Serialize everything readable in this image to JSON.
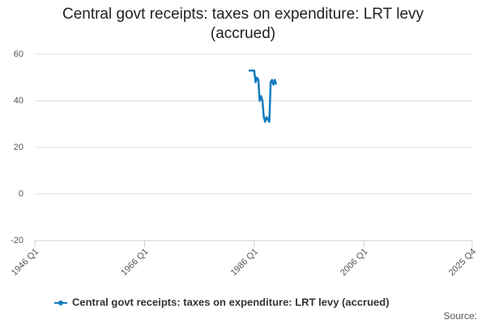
{
  "chart_data": {
    "type": "line",
    "title": "Central govt receipts: taxes on expenditure: LRT levy (accrued)",
    "x": [
      "1985 Q1",
      "1985 Q2",
      "1985 Q3",
      "1985 Q4",
      "1986 Q1",
      "1986 Q2",
      "1986 Q3",
      "1986 Q4",
      "1987 Q1",
      "1987 Q2",
      "1987 Q3",
      "1987 Q4",
      "1988 Q1",
      "1988 Q2",
      "1988 Q3",
      "1988 Q4",
      "1989 Q1",
      "1989 Q2",
      "1989 Q3",
      "1989 Q4",
      "1990 Q1"
    ],
    "series": [
      {
        "name": "Central govt receipts: taxes on expenditure: LRT levy (accrued)",
        "color": "#0f7bbd",
        "values": [
          53,
          53,
          53,
          53,
          53,
          48,
          50,
          49,
          40,
          42,
          40,
          33,
          31,
          33,
          32,
          31,
          48,
          49,
          47,
          49,
          47
        ]
      }
    ],
    "xlim": [
      "1946 Q1",
      "2025 Q4"
    ],
    "xticks": [
      "1946 Q1",
      "1966 Q1",
      "1986 Q1",
      "2006 Q1",
      "2025 Q4"
    ],
    "ylim": [
      -20,
      60
    ],
    "yticks": [
      -20,
      0,
      20,
      40,
      60
    ],
    "grid": true,
    "legend": "bottom",
    "source": "Source:"
  }
}
